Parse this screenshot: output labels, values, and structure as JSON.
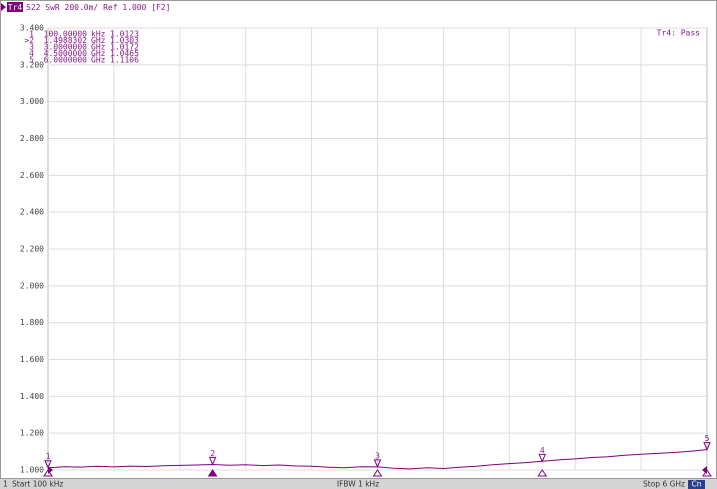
{
  "header": {
    "trace": "Tr4",
    "text": "S22 SwR 200.0m/ Ref 1.000 [F2]",
    "status": "Tr4: Pass"
  },
  "footer": {
    "channel": "1",
    "start": "Start 100 kHz",
    "ifbw": "IFBW 1 kHz",
    "stop": "Stop 6 GHz",
    "cn": "Cn"
  },
  "chart_data": {
    "type": "line",
    "color": "#800080",
    "grid": true,
    "xlim": [
      0.1,
      6000
    ],
    "ylim": [
      1,
      3.4
    ],
    "yticks": [
      {
        "value": 1,
        "label": "1.000"
      },
      {
        "value": 1.2,
        "label": "1.200"
      },
      {
        "value": 1.4,
        "label": "1.400"
      },
      {
        "value": 1.6,
        "label": "1.600"
      },
      {
        "value": 1.8,
        "label": "1.800"
      },
      {
        "value": 2,
        "label": "2.000"
      },
      {
        "value": 2.2,
        "label": "2.200"
      },
      {
        "value": 2.4,
        "label": "2.400"
      },
      {
        "value": 2.6,
        "label": "2.600"
      },
      {
        "value": 2.8,
        "label": "2.800"
      },
      {
        "value": 3,
        "label": "3.000"
      },
      {
        "value": 3.2,
        "label": "3.200"
      },
      {
        "value": 3.4,
        "label": "3.400"
      }
    ],
    "x": [
      0.1,
      150,
      300,
      450,
      600,
      750,
      900,
      1050,
      1200,
      1350,
      1500,
      1650,
      1800,
      1950,
      2100,
      2250,
      2400,
      2550,
      2700,
      2850,
      3000,
      3150,
      3300,
      3450,
      3600,
      3750,
      3900,
      4050,
      4200,
      4350,
      4500,
      4650,
      4800,
      4950,
      5100,
      5250,
      5400,
      5550,
      5700,
      5850,
      6000
    ],
    "values": [
      1.012,
      1.018,
      1.016,
      1.02,
      1.017,
      1.021,
      1.019,
      1.023,
      1.025,
      1.027,
      1.03,
      1.026,
      1.029,
      1.024,
      1.027,
      1.022,
      1.02,
      1.015,
      1.012,
      1.018,
      1.017,
      1.01,
      1.006,
      1.012,
      1.008,
      1.015,
      1.02,
      1.028,
      1.035,
      1.04,
      1.047,
      1.055,
      1.06,
      1.068,
      1.072,
      1.08,
      1.085,
      1.09,
      1.095,
      1.102,
      1.111
    ],
    "markers": [
      {
        "label": "1",
        "freq": {
          "value": 0.1,
          "label": "100.00000"
        },
        "unit": "kHz",
        "value": 1.0123
      },
      {
        "label": ">2",
        "freq": {
          "value": 1498.8302,
          "label": "1.4988302"
        },
        "unit": "GHz",
        "value": 1.0303
      },
      {
        "label": "3",
        "freq": {
          "value": 3000,
          "label": "3.0000000"
        },
        "unit": "GHz",
        "value": 1.0172
      },
      {
        "label": "4",
        "freq": {
          "value": 4500,
          "label": "4.5000000"
        },
        "unit": "GHz",
        "value": 1.0465
      },
      {
        "label": "5",
        "freq": {
          "value": 6000,
          "label": "6.0000000"
        },
        "unit": "GHz",
        "value": 1.1106
      }
    ]
  }
}
